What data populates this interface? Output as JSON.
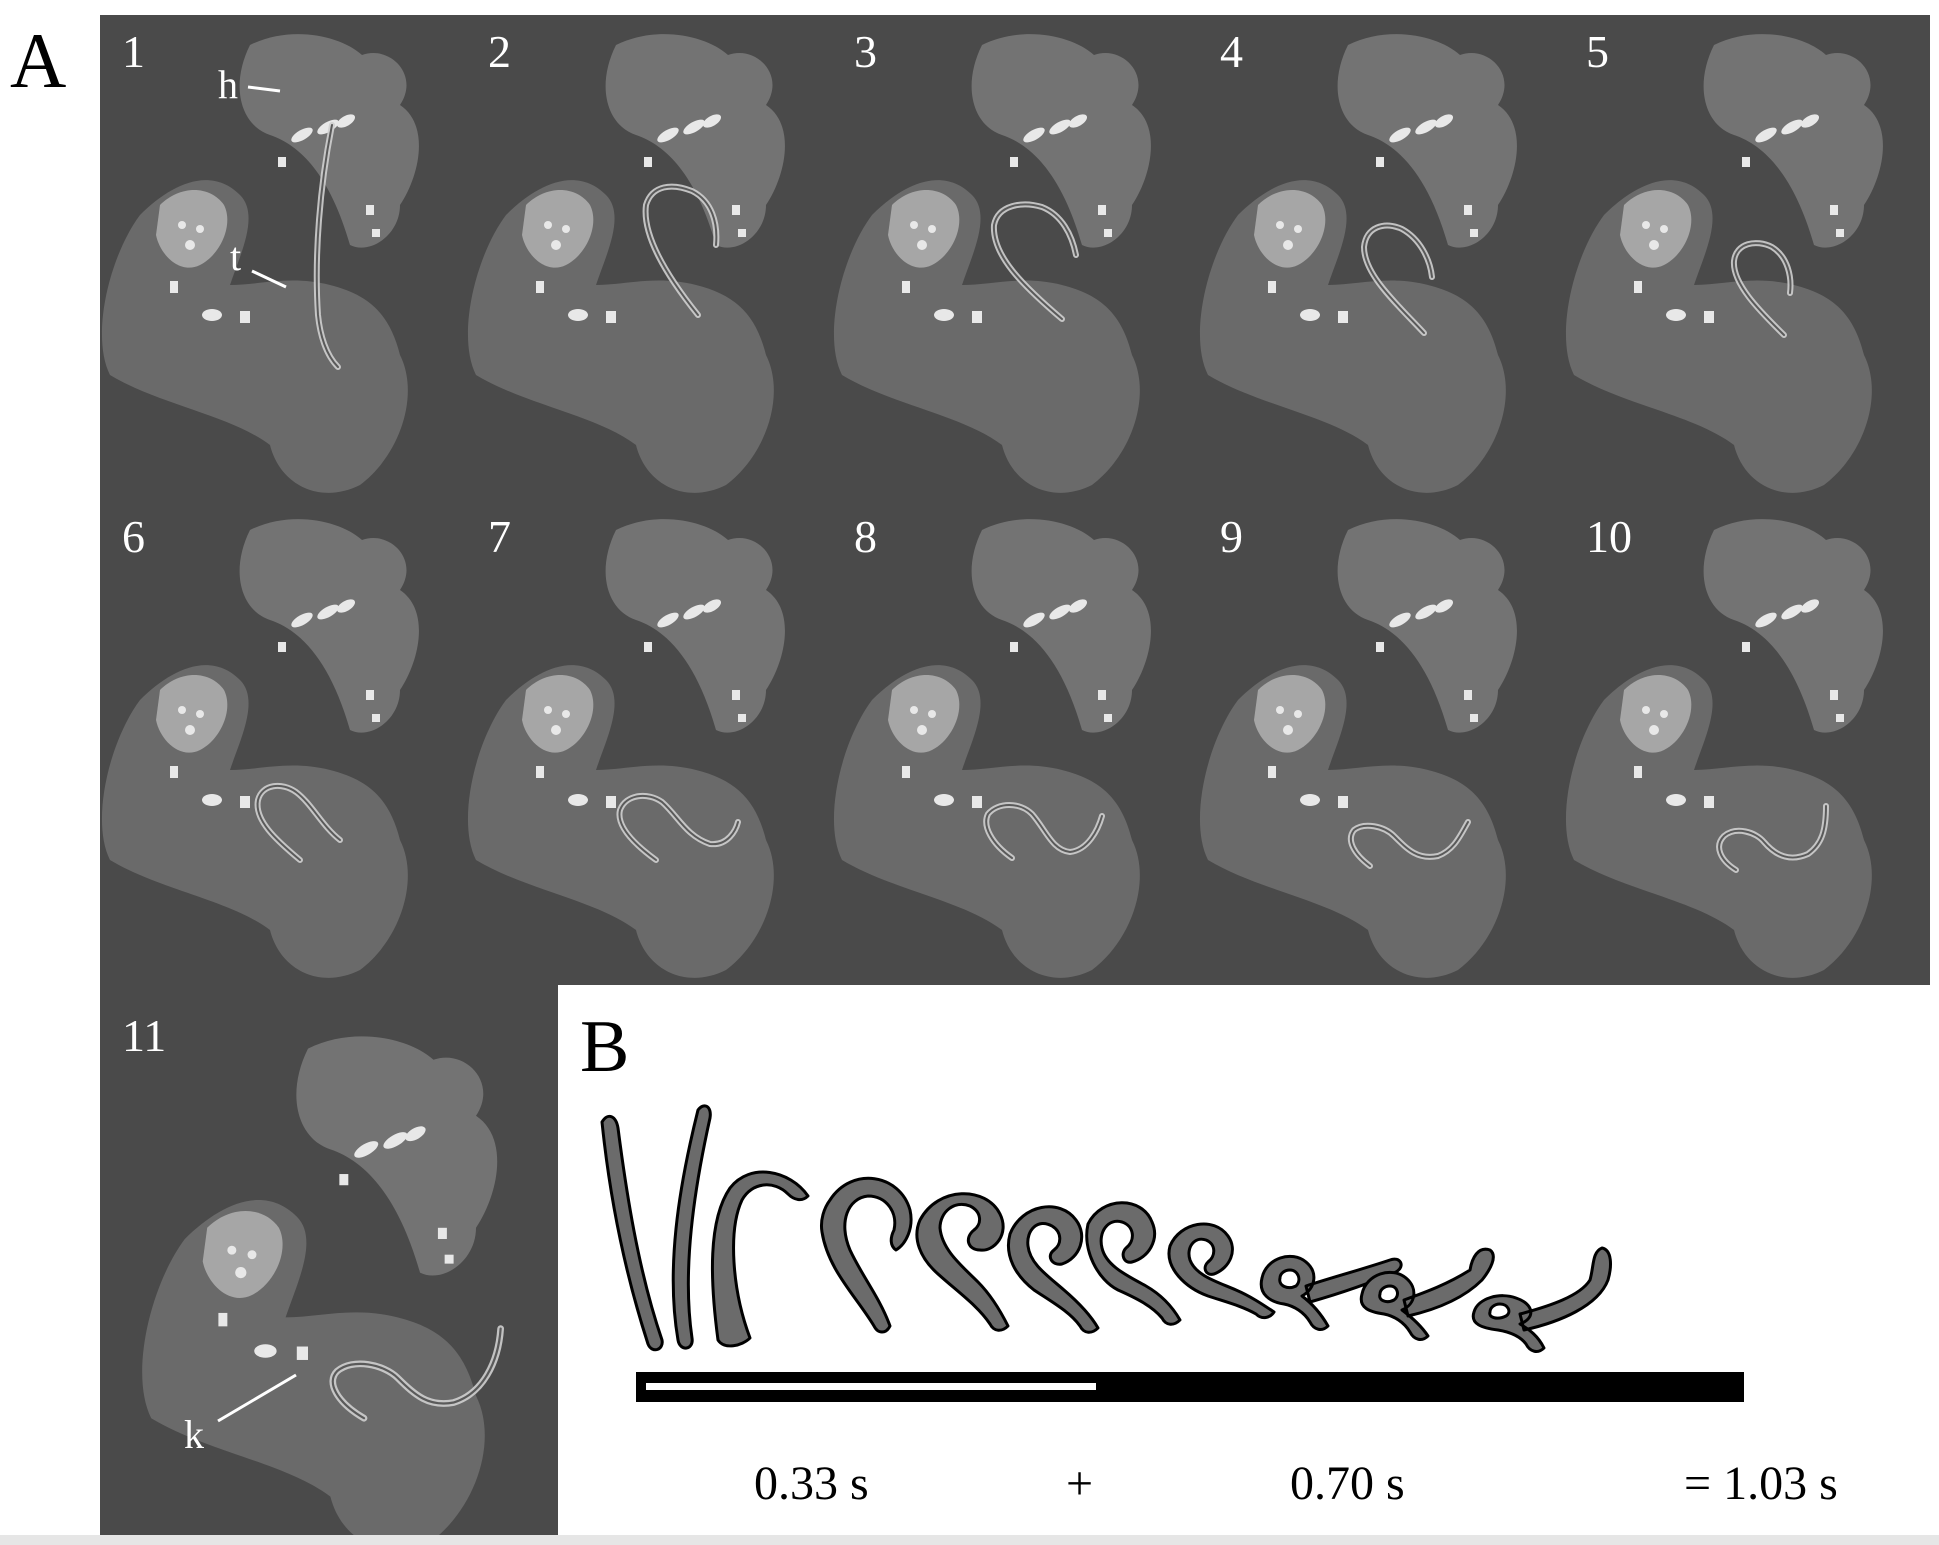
{
  "panelA": {
    "letter": "A",
    "frames": [
      {
        "num": "1"
      },
      {
        "num": "2"
      },
      {
        "num": "3"
      },
      {
        "num": "4"
      },
      {
        "num": "5"
      },
      {
        "num": "6"
      },
      {
        "num": "7"
      },
      {
        "num": "8"
      },
      {
        "num": "9"
      },
      {
        "num": "10"
      },
      {
        "num": "11"
      }
    ],
    "labels": {
      "h": "h",
      "t": "t",
      "k": "k"
    }
  },
  "panelB": {
    "letter": "B",
    "times": {
      "first": "0.33 s",
      "plus": "+",
      "second": "0.70 s",
      "total": "= 1.03 s"
    }
  },
  "colors": {
    "frame_bg": "#4a4a4a",
    "nematode_fill": "#6b6b6b",
    "bar": "#000000"
  }
}
